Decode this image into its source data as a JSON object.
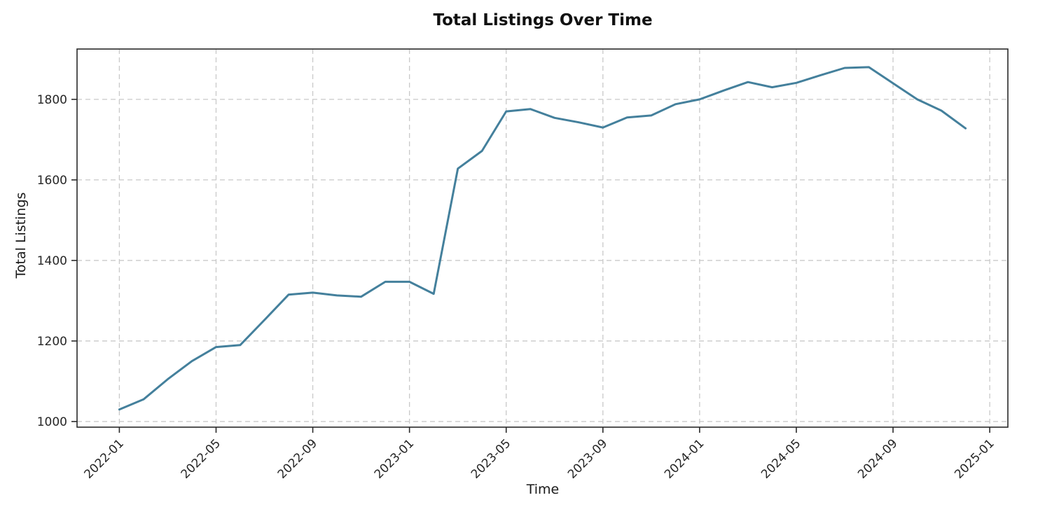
{
  "page": {
    "background": "#ffffff"
  },
  "chart_data": {
    "type": "line",
    "title": "Total Listings Over Time",
    "xlabel": "Time",
    "ylabel": "Total Listings",
    "x": [
      "2022-01",
      "2022-02",
      "2022-03",
      "2022-04",
      "2022-05",
      "2022-06",
      "2022-07",
      "2022-08",
      "2022-09",
      "2022-10",
      "2022-11",
      "2022-12",
      "2023-01",
      "2023-02",
      "2023-03",
      "2023-04",
      "2023-05",
      "2023-06",
      "2023-07",
      "2023-08",
      "2023-09",
      "2023-10",
      "2023-11",
      "2023-12",
      "2024-01",
      "2024-02",
      "2024-03",
      "2024-04",
      "2024-05",
      "2024-06",
      "2024-07",
      "2024-08",
      "2024-09",
      "2024-10",
      "2024-11",
      "2024-12"
    ],
    "series": [
      {
        "name": "Total Listings",
        "values": [
          1030,
          1055,
          1105,
          1150,
          1185,
          1190,
          1252,
          1315,
          1320,
          1313,
          1310,
          1347,
          1347,
          1317,
          1628,
          1672,
          1770,
          1776,
          1754,
          1743,
          1730,
          1755,
          1760,
          1788,
          1800,
          1822,
          1843,
          1830,
          1841,
          1860,
          1878,
          1880,
          1840,
          1800,
          1772,
          1728
        ]
      }
    ],
    "x_tick_labels": [
      "2022-01",
      "2022-05",
      "2022-09",
      "2023-01",
      "2023-05",
      "2023-09",
      "2024-01",
      "2024-05",
      "2024-09",
      "2025-01"
    ],
    "x_tick_rotation_deg": 45,
    "y_ticks": [
      1000,
      1200,
      1400,
      1600,
      1800
    ],
    "ylim": [
      986,
      1925
    ],
    "xlim_month_offset": [
      -1.75,
      36.75
    ],
    "x_epoch": "2022-01",
    "grid": true,
    "grid_line_style": "dashed",
    "legend_position": "none",
    "colors": {
      "line": "#44809c",
      "grid": "#c9c9c9",
      "spine": "#2a2a2a",
      "tick_text": "#262626",
      "title_text": "#111111"
    }
  }
}
